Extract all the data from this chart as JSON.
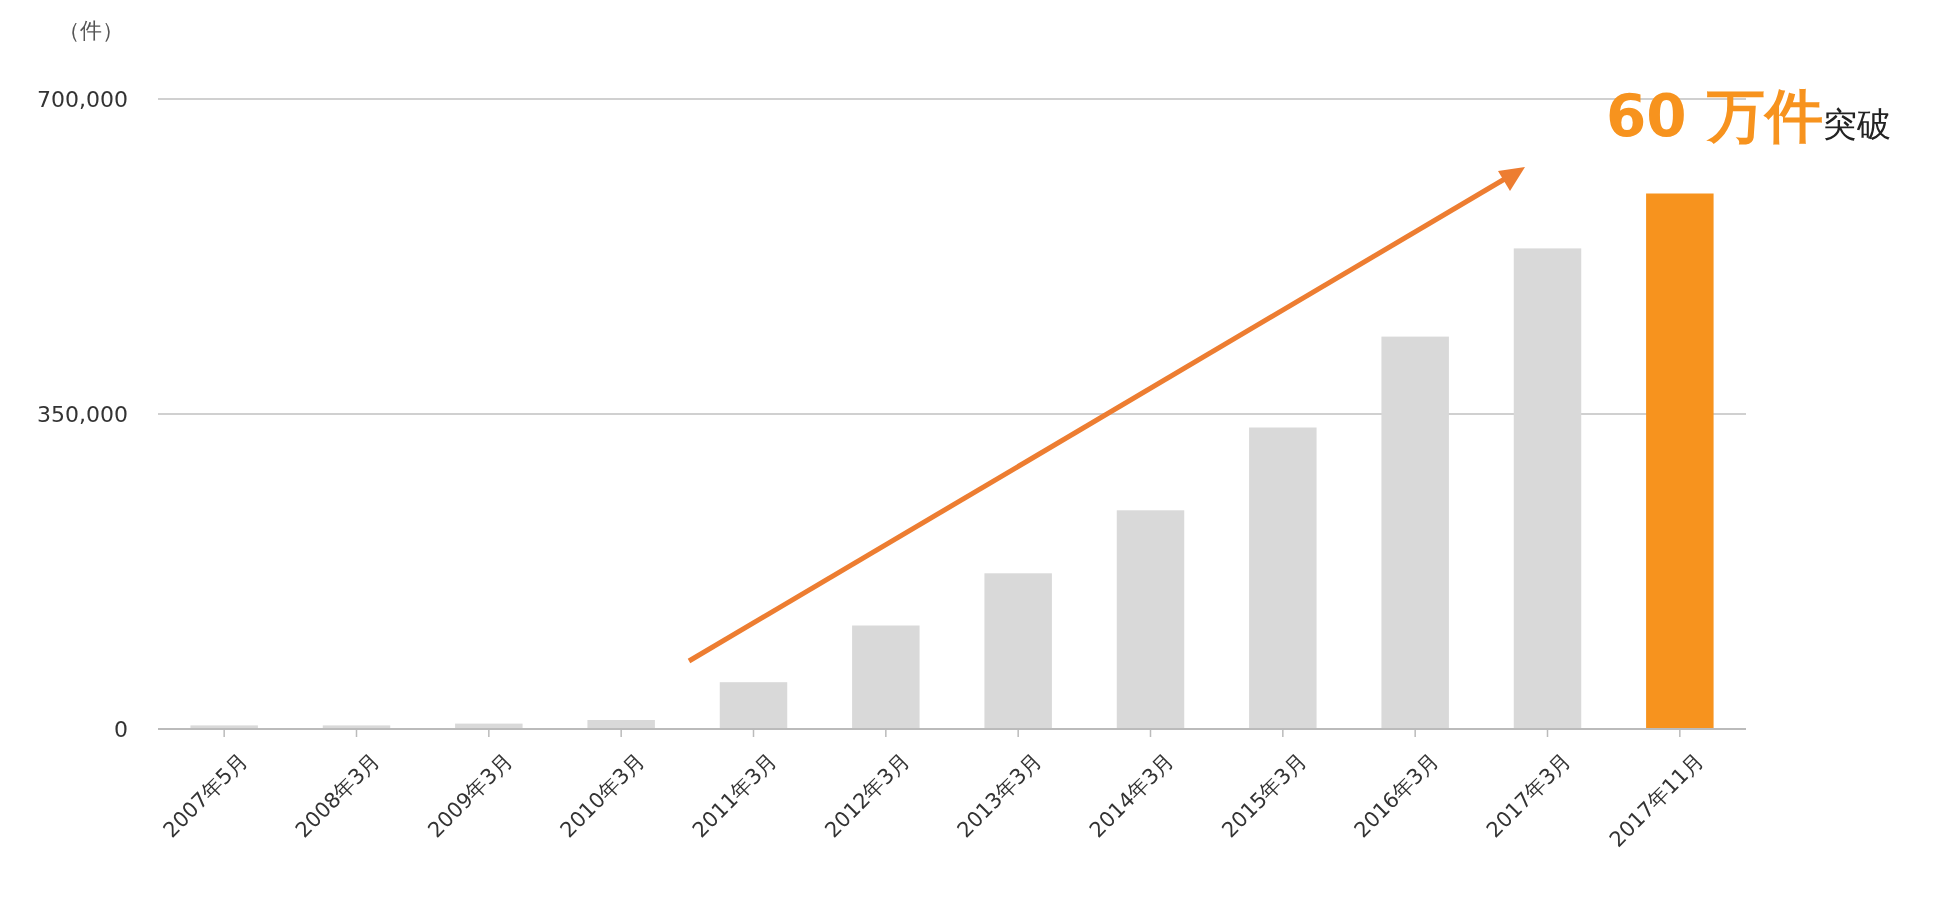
{
  "chart_data": {
    "type": "bar",
    "ylabel": "（件）",
    "categories": [
      "2007年5月",
      "2008年3月",
      "2009年3月",
      "2010年3月",
      "2011年3月",
      "2012年3月",
      "2013年3月",
      "2014年3月",
      "2015年3月",
      "2016年3月",
      "2017年3月",
      "2017年11月"
    ],
    "values": [
      4000,
      4000,
      6000,
      10000,
      52000,
      115000,
      173000,
      243000,
      335000,
      436000,
      534000,
      595000
    ],
    "colors": [
      "#d9d9d9",
      "#d9d9d9",
      "#d9d9d9",
      "#d9d9d9",
      "#d9d9d9",
      "#d9d9d9",
      "#d9d9d9",
      "#d9d9d9",
      "#d9d9d9",
      "#d9d9d9",
      "#d9d9d9",
      "#f7931e"
    ],
    "ylim": [
      0,
      700000
    ],
    "yticks": [
      {
        "value": 0,
        "label": "0"
      },
      {
        "value": 350000,
        "label": "350,000"
      },
      {
        "value": 700000,
        "label": "700,000"
      }
    ],
    "grid": "y",
    "annotations": [
      "60 万件",
      "突破"
    ]
  }
}
